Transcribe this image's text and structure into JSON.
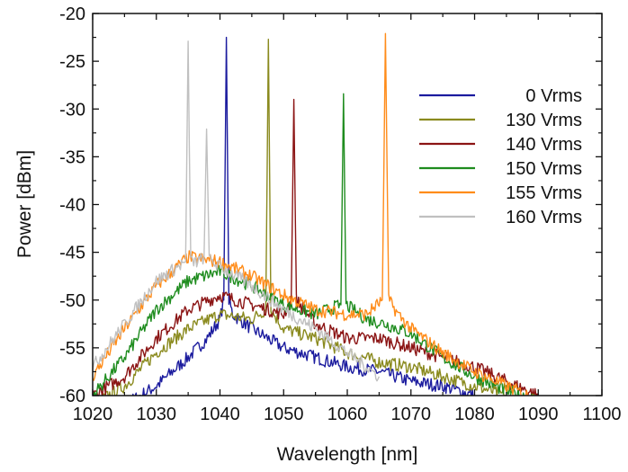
{
  "chart_data": {
    "type": "line",
    "title": "",
    "xlabel": "Wavelength [nm]",
    "ylabel": "Power [dBm]",
    "xlim": [
      1020,
      1100
    ],
    "ylim": [
      -60,
      -20
    ],
    "xticks": [
      1020,
      1030,
      1040,
      1050,
      1060,
      1070,
      1080,
      1090,
      1100
    ],
    "yticks": [
      -60,
      -55,
      -50,
      -45,
      -40,
      -35,
      -30,
      -25,
      -20
    ],
    "grid": false,
    "legend": "top-right",
    "series": [
      {
        "name": "0 Vrms",
        "color": "#1b1b9e",
        "x": [
          1020,
          1025,
          1030,
          1035,
          1038,
          1040,
          1040.6,
          1041.0,
          1041.4,
          1042,
          1045,
          1050,
          1055,
          1060,
          1065,
          1070,
          1075,
          1080
        ],
        "y": [
          -62,
          -61,
          -59,
          -56,
          -54,
          -52,
          -50,
          -22.5,
          -50,
          -51.5,
          -53,
          -55,
          -56,
          -57,
          -57.5,
          -58.5,
          -59,
          -60
        ]
      },
      {
        "name": "130 Vrms",
        "color": "#8a8a1e",
        "x": [
          1020,
          1025,
          1030,
          1035,
          1040,
          1045,
          1047.2,
          1047.6,
          1048.0,
          1050,
          1055,
          1060,
          1065,
          1070,
          1075,
          1080,
          1085
        ],
        "y": [
          -61,
          -59,
          -55.5,
          -53,
          -51.5,
          -52,
          -51,
          -22.7,
          -51,
          -53,
          -54,
          -55.5,
          -56.5,
          -57,
          -58,
          -59,
          -60
        ]
      },
      {
        "name": "140 Vrms",
        "color": "#8b1414",
        "x": [
          1020,
          1025,
          1030,
          1035,
          1040,
          1045,
          1050,
          1051.2,
          1051.6,
          1052.0,
          1055,
          1060,
          1065,
          1070,
          1075,
          1080,
          1085,
          1090
        ],
        "y": [
          -60,
          -58,
          -54,
          -51,
          -49.5,
          -50.5,
          -51.5,
          -50,
          -29,
          -50,
          -52.5,
          -54,
          -54,
          -55,
          -56,
          -57,
          -58.5,
          -60
        ]
      },
      {
        "name": "150 Vrms",
        "color": "#1e8c1e",
        "x": [
          1020,
          1025,
          1030,
          1035,
          1040,
          1045,
          1050,
          1055,
          1059.0,
          1059.4,
          1059.8,
          1063,
          1066,
          1070,
          1075,
          1080,
          1085,
          1090
        ],
        "y": [
          -60,
          -56,
          -51,
          -48,
          -47,
          -48.5,
          -50.5,
          -51.5,
          -50.5,
          -28.4,
          -50.5,
          -52,
          -52.5,
          -53.5,
          -56,
          -58,
          -59.5,
          -60.5
        ]
      },
      {
        "name": "155 Vrms",
        "color": "#ff8c1a",
        "x": [
          1020,
          1025,
          1030,
          1035,
          1040,
          1045,
          1050,
          1055,
          1060,
          1063,
          1065.5,
          1066.0,
          1066.5,
          1068,
          1070,
          1075,
          1080,
          1085,
          1090
        ],
        "y": [
          -58,
          -53,
          -48.5,
          -45.5,
          -46,
          -47.5,
          -49.5,
          -51,
          -51.5,
          -51.5,
          -50,
          -22.1,
          -50,
          -51.5,
          -53,
          -55.5,
          -57.5,
          -59,
          -60.5
        ]
      },
      {
        "name": "160 Vrms",
        "color": "#c0c0c0",
        "x": [
          1020,
          1025,
          1030,
          1034.6,
          1035.0,
          1035.4,
          1036.5,
          1037.5,
          1037.9,
          1038.3,
          1040,
          1045,
          1050,
          1055,
          1060,
          1065
        ],
        "y": [
          -57,
          -52.5,
          -48,
          -46,
          -22.9,
          -46,
          -46,
          -45.5,
          -32.1,
          -45.8,
          -46.5,
          -48.5,
          -51,
          -53,
          -55.5,
          -58
        ]
      }
    ]
  }
}
